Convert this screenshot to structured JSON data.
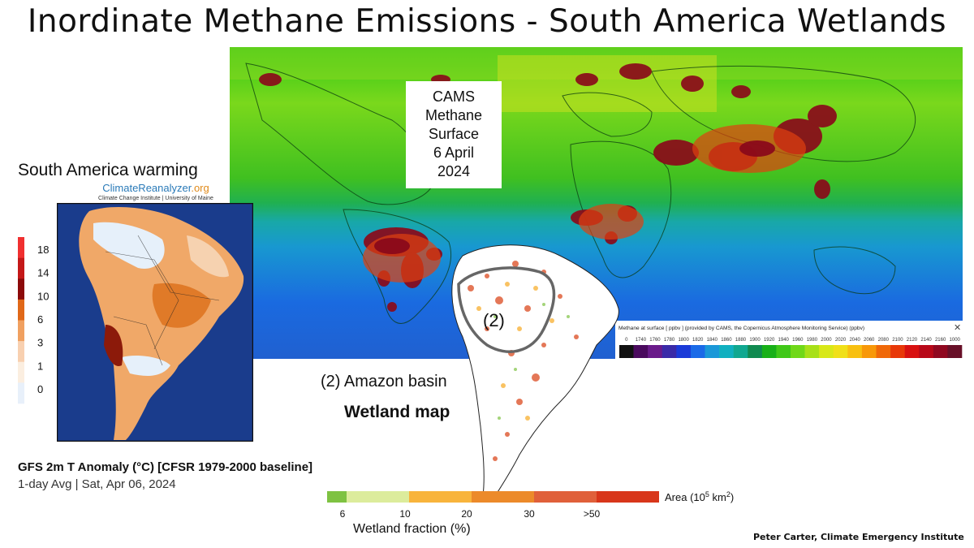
{
  "title": "Inordinate  Methane Emissions - South America Wetlands",
  "cams_box": {
    "lines": [
      "CAMS",
      "Methane",
      "Surface",
      "6 April",
      "2024"
    ]
  },
  "south_america_warming": "South America warming",
  "climate_reanalyzer": {
    "name": "ClimateReanalyzer",
    "tld": ".org",
    "subtitle": "Climate Change Institute | University of Maine"
  },
  "anomaly_scale": {
    "ticks": [
      "18",
      "14",
      "10",
      "6",
      "3",
      "1",
      "0"
    ],
    "colors": [
      "#f03030",
      "#c41818",
      "#8c0a0a",
      "#e06818",
      "#f0a060",
      "#f8d0b0",
      "#fbeee0",
      "#e8f0fa"
    ]
  },
  "gfs": {
    "title": "GFS 2m T Anomaly (°C) [CFSR 1979-2000 baseline]",
    "subtitle": "1-day Avg | Sat, Apr 06, 2024"
  },
  "amazon_label": "(2) Amazon basin",
  "basin_marker": "(2)",
  "wetland_map_title": "Wetland map",
  "methane_scale": {
    "caption": "Methane at surface [ ppbv ] (provided by CAMS, the Copernicus Atmosphere Monitoring Service) (ppbv)",
    "close_glyph": "✕",
    "ticks": [
      "0",
      "1740",
      "1760",
      "1780",
      "1800",
      "1820",
      "1840",
      "1860",
      "1880",
      "1900",
      "1920",
      "1940",
      "1960",
      "1980",
      "2000",
      "2020",
      "2040",
      "2060",
      "2080",
      "2100",
      "2120",
      "2140",
      "2160",
      "1000"
    ],
    "colors": [
      "#111111",
      "#4a0a5e",
      "#6a1a8a",
      "#3a2aa8",
      "#1a3ad8",
      "#1a6ae8",
      "#1a98d8",
      "#10b0c0",
      "#10a890",
      "#108a50",
      "#18b018",
      "#40c818",
      "#70d818",
      "#a8e018",
      "#d8e818",
      "#f0e018",
      "#f8c010",
      "#f89808",
      "#f06808",
      "#e83808",
      "#d81010",
      "#b80818",
      "#900820",
      "#681028"
    ]
  },
  "wetland_scale": {
    "bins": [
      "6",
      "10",
      "20",
      "30",
      ">50"
    ],
    "colors": [
      "#7ec242",
      "#dcec9c",
      "#f8b43c",
      "#ec8a2a",
      "#e0603a",
      "#d8361a"
    ],
    "unit_label": "Area (10",
    "unit_exp": "5",
    "unit_tail": " km",
    "unit_exp2": "2",
    "unit_close": ")",
    "xlabel": "Wetland fraction (%)"
  },
  "credit": "Peter Carter, Climate Emergency Institute"
}
